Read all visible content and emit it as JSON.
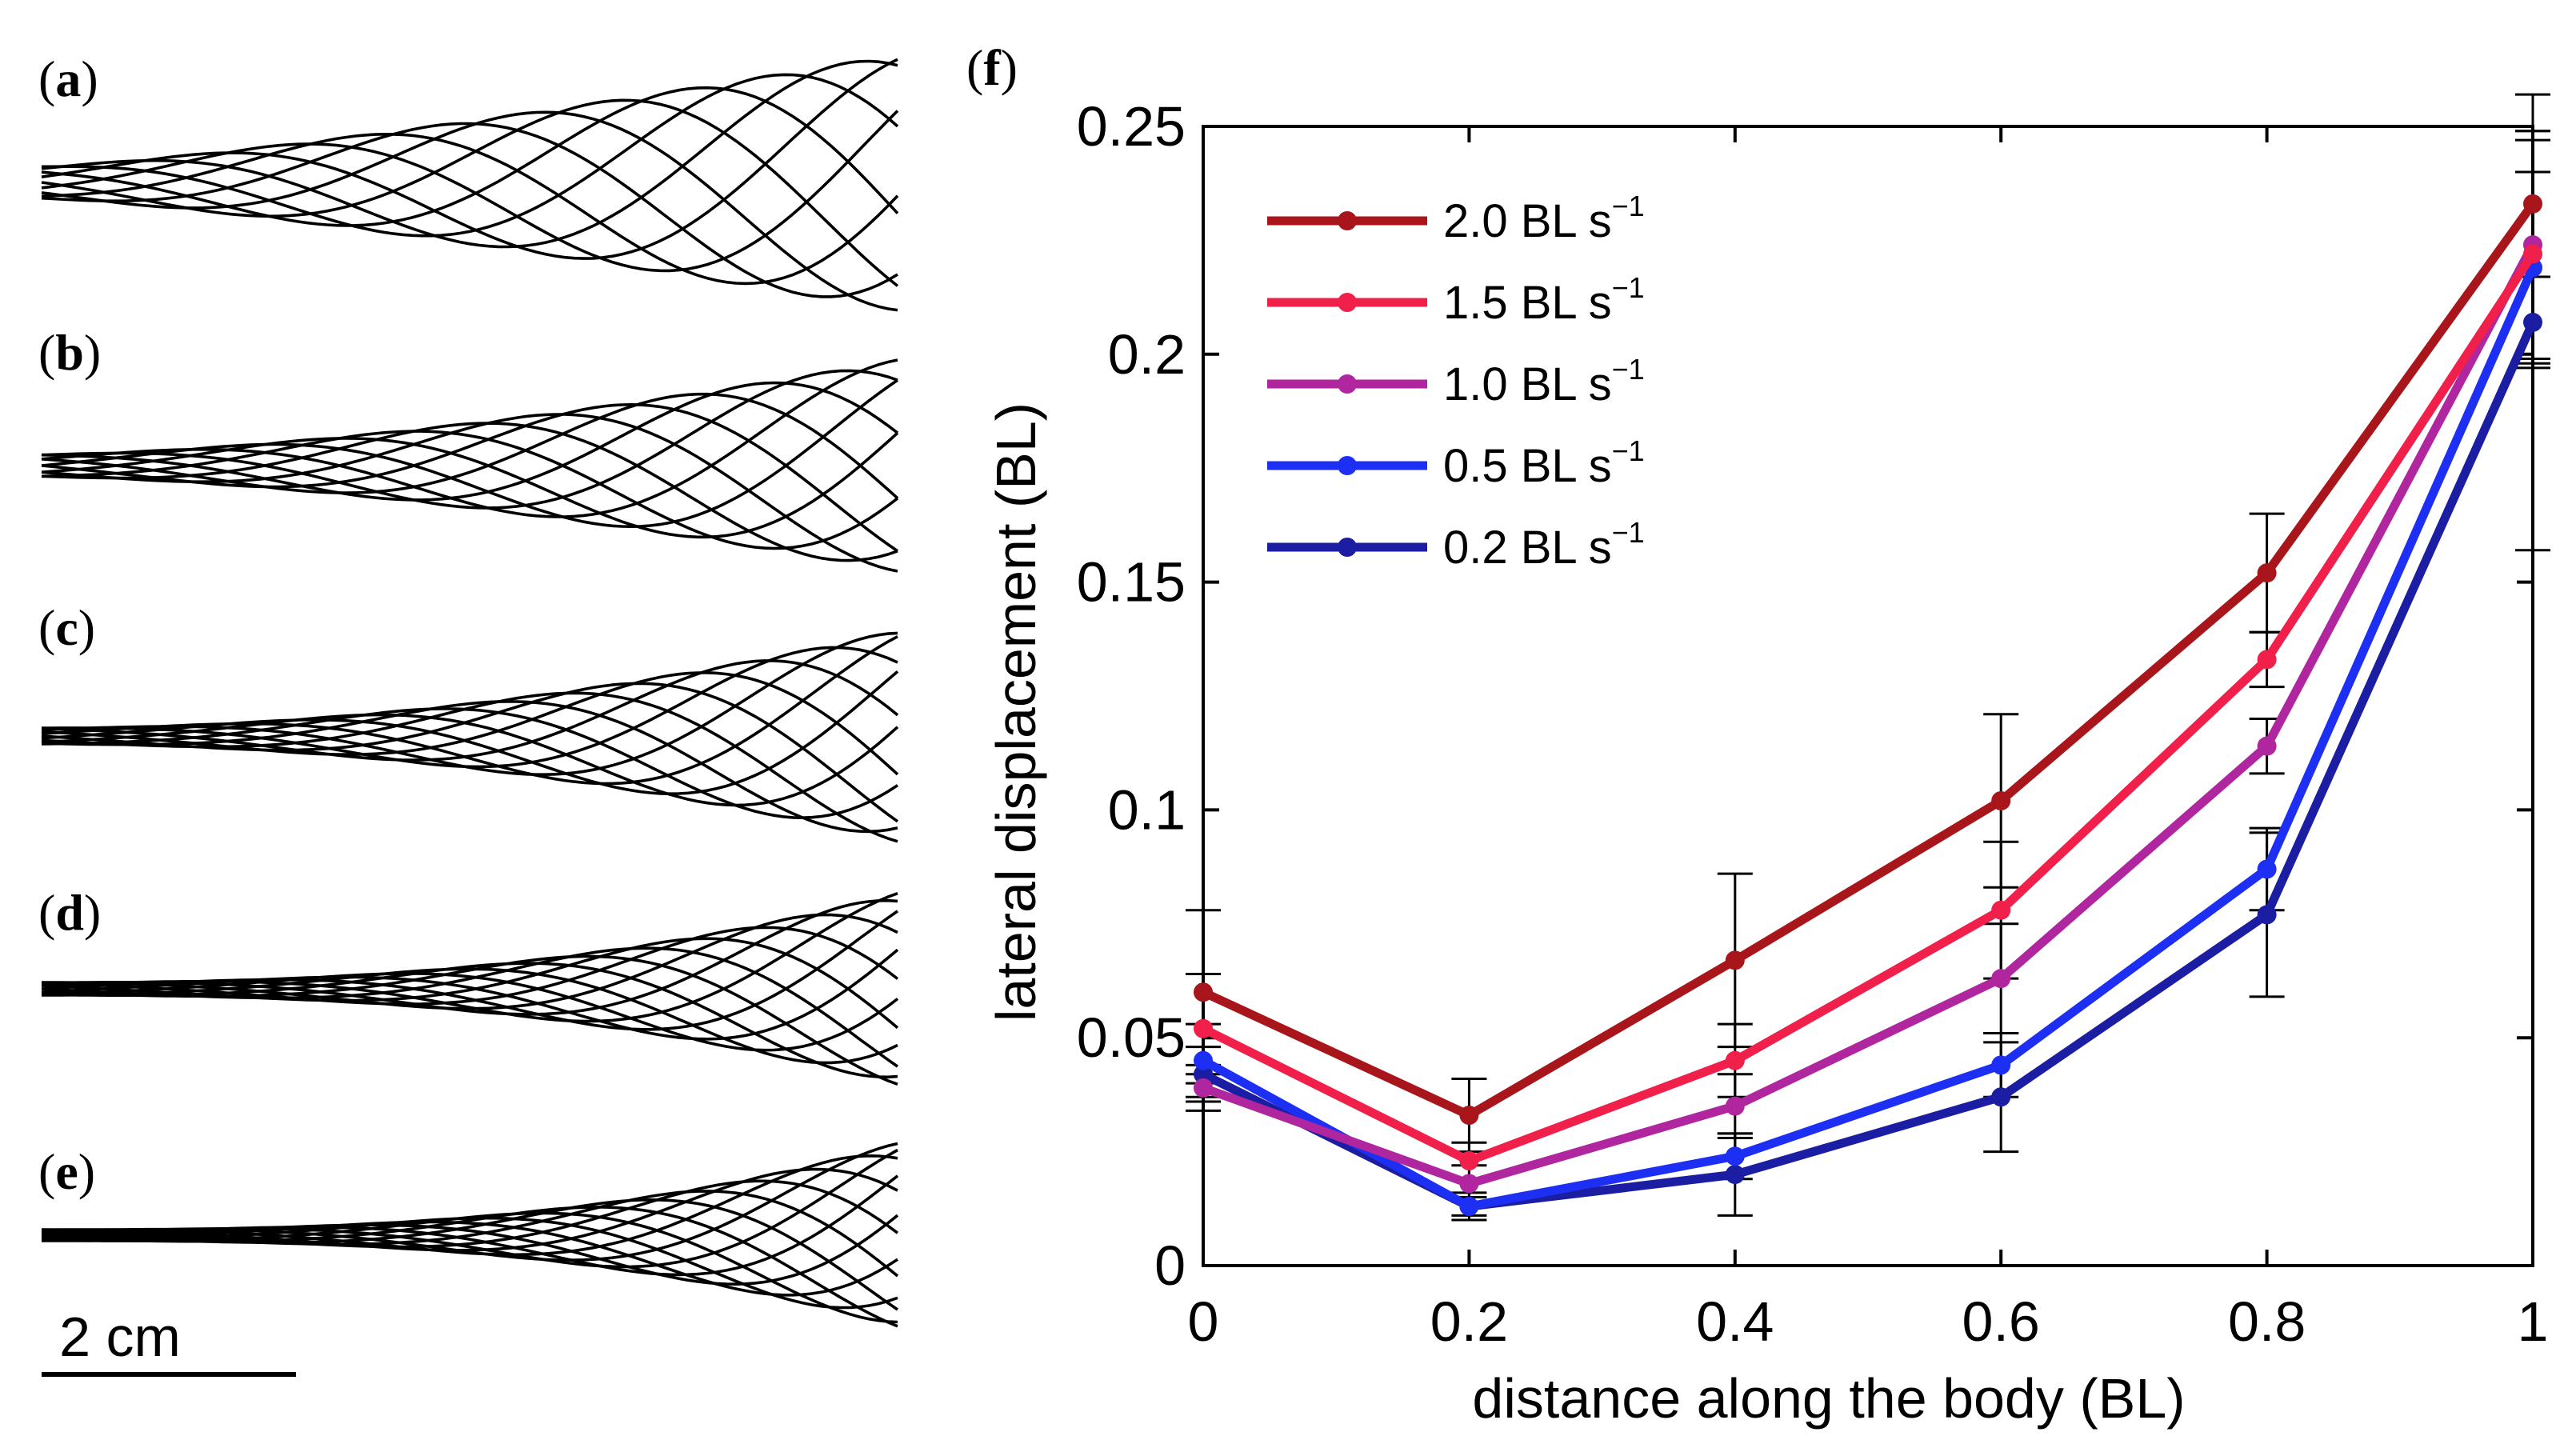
{
  "panels": {
    "labels": [
      "a",
      "b",
      "c",
      "d",
      "e"
    ],
    "main_label": "f",
    "scale_bar": "2 cm"
  },
  "colors": {
    "s20": "#a8161c",
    "s15": "#f0204a",
    "s10": "#b0269f",
    "s05": "#1c2ff2",
    "s02": "#1b1ea2"
  },
  "chart_data": {
    "type": "line",
    "title": "",
    "xlabel": "distance along the body (BL)",
    "ylabel": "lateral displacement (BL)",
    "xlim": [
      0,
      1
    ],
    "ylim": [
      0,
      0.25
    ],
    "x": [
      0,
      0.2,
      0.4,
      0.6,
      0.8,
      1
    ],
    "x_tick_labels": [
      "0",
      "0.2",
      "0.4",
      "0.6",
      "0.8",
      "1"
    ],
    "y_ticks": [
      0,
      0.05,
      0.1,
      0.15,
      0.2,
      0.25
    ],
    "y_tick_labels": [
      "0",
      "0.05",
      "0.1",
      "0.15",
      "0.2",
      "0.25"
    ],
    "legend_position": "top-left",
    "series": [
      {
        "name": "2.0 BL s",
        "sup": "−1",
        "color_key": "s20",
        "values": [
          0.06,
          0.033,
          0.067,
          0.102,
          0.152,
          0.233
        ],
        "errors": [
          0.018,
          0.008,
          0.019,
          0.019,
          0.013,
          0.016
        ]
      },
      {
        "name": "1.5 BL s",
        "sup": "−1",
        "color_key": "s15",
        "values": [
          0.052,
          0.023,
          0.045,
          0.078,
          0.133,
          0.222
        ],
        "errors": [
          0.012,
          0.004,
          0.008,
          0.015,
          0.006,
          0.025
        ]
      },
      {
        "name": "1.0 BL s",
        "sup": "−1",
        "color_key": "s10",
        "values": [
          0.039,
          0.018,
          0.035,
          0.063,
          0.114,
          0.224
        ],
        "errors": [
          0.005,
          0.004,
          0.007,
          0.012,
          0.006,
          0.025
        ]
      },
      {
        "name": "0.5 BL s",
        "sup": "−1",
        "color_key": "s05",
        "values": [
          0.045,
          0.013,
          0.024,
          0.044,
          0.087,
          0.219
        ],
        "errors": [
          0.008,
          0.003,
          0.005,
          0.007,
          0.009,
          0.021
        ]
      },
      {
        "name": "0.2 BL s",
        "sup": "−1",
        "color_key": "s02",
        "values": [
          0.042,
          0.013,
          0.02,
          0.037,
          0.077,
          0.207
        ],
        "errors": [
          0.006,
          0.002,
          0.009,
          0.012,
          0.018,
          0.05
        ]
      }
    ]
  }
}
